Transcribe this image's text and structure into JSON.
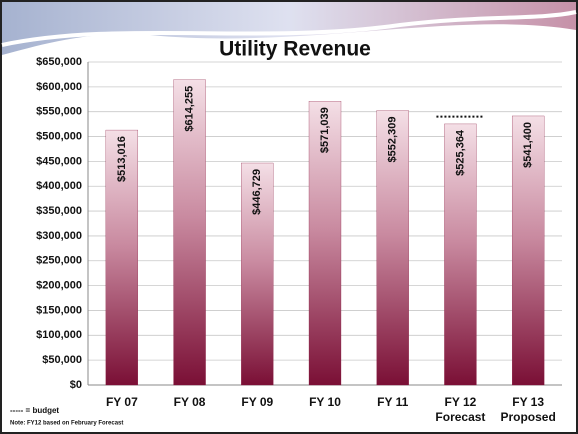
{
  "chart_data": {
    "type": "bar",
    "title": "Utility Revenue",
    "categories": [
      "FY 07",
      "FY 08",
      "FY 09",
      "FY 10",
      "FY 11",
      "FY 12",
      "FY 13"
    ],
    "category_sublabels": [
      null,
      null,
      null,
      null,
      null,
      "Forecast",
      "Proposed"
    ],
    "values": [
      513016,
      614255,
      446729,
      571039,
      552309,
      525364,
      541400
    ],
    "value_labels": [
      "$513,016",
      "$614,255",
      "$446,729",
      "$571,039",
      "$552,309",
      "$525,364",
      "$541,400"
    ],
    "color": "#8a1a40",
    "budget": {
      "category": "FY 12",
      "value": 540000,
      "legend": "----- = budget"
    },
    "note": "Note: FY12 based on February Forecast",
    "ylim": [
      0,
      650000
    ],
    "yticks": [
      {
        "value": 0,
        "label": "$0"
      },
      {
        "value": 50000,
        "label": "$50,000"
      },
      {
        "value": 100000,
        "label": "$100,000"
      },
      {
        "value": 150000,
        "label": "$150,000"
      },
      {
        "value": 200000,
        "label": "$200,000"
      },
      {
        "value": 250000,
        "label": "$250,000"
      },
      {
        "value": 300000,
        "label": "$300,000"
      },
      {
        "value": 350000,
        "label": "$350,000"
      },
      {
        "value": 400000,
        "label": "$400,000"
      },
      {
        "value": 450000,
        "label": "$450,000"
      },
      {
        "value": 500000,
        "label": "$500,000"
      },
      {
        "value": 550000,
        "label": "$550,000"
      },
      {
        "value": 600000,
        "label": "$600,000"
      },
      {
        "value": 650000,
        "label": "$650,000"
      }
    ],
    "grid": true
  }
}
